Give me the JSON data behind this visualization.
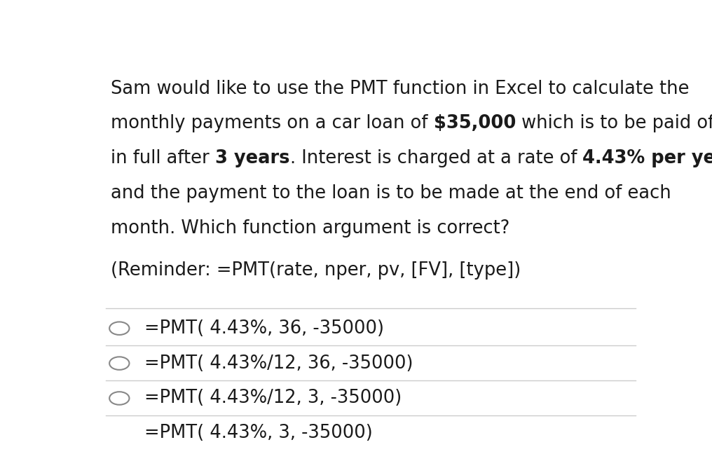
{
  "background_color": "#ffffff",
  "text_color": "#1a1a1a",
  "reminder_text": "(Reminder: =PMT(rate, nper, pv, [FV], [type])",
  "options": [
    "=PMT( 4.43%, 36, -35000)",
    "=PMT( 4.43%/12, 36, -35000)",
    "=PMT( 4.43%/12, 3, -35000)",
    "=PMT( 4.43%, 3, -35000)"
  ],
  "font_size": 18.5,
  "line_color": "#cccccc",
  "fig_width": 10.16,
  "fig_height": 6.68
}
